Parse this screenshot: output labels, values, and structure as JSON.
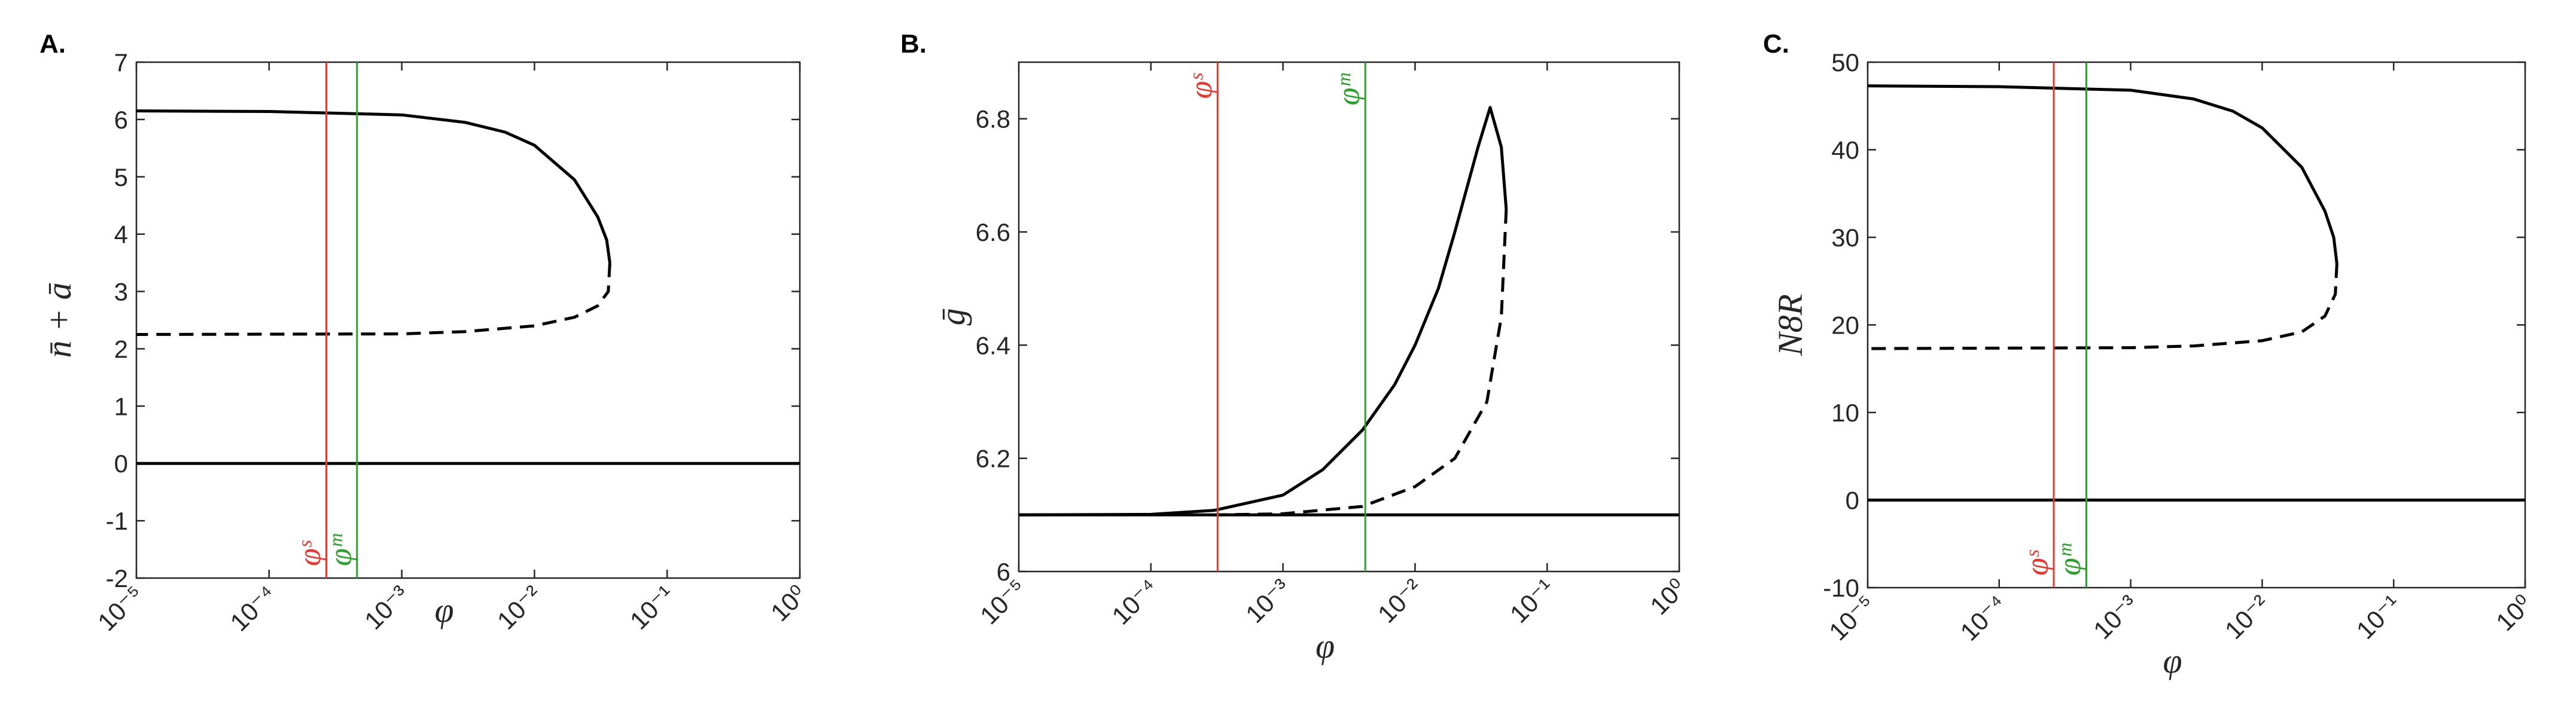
{
  "chart_data": [
    {
      "type": "line",
      "panel_label": "A.",
      "xlabel": "φ",
      "ylabel": "n̄ + ā",
      "xscale": "log",
      "xlim": [
        1e-05,
        1
      ],
      "ylim": [
        -2,
        7
      ],
      "xticks": [
        {
          "value": 1e-05,
          "label": "10⁻⁵"
        },
        {
          "value": 0.0001,
          "label": "10⁻⁴"
        },
        {
          "value": 0.001,
          "label": "10⁻³"
        },
        {
          "value": 0.01,
          "label": "10⁻²"
        },
        {
          "value": 0.1,
          "label": "10⁻¹"
        },
        {
          "value": 1,
          "label": "10⁰"
        }
      ],
      "yticks": [
        -2,
        -1,
        0,
        1,
        2,
        3,
        4,
        5,
        6,
        7
      ],
      "vline_label_position": "bottom",
      "vlines": [
        {
          "x": 0.00027,
          "label": "φˢ",
          "color": "#e8372e"
        },
        {
          "x": 0.00046,
          "label": "φᵐ",
          "color": "#2ca02c"
        }
      ],
      "series": [
        {
          "color": "#000000",
          "style": "solid",
          "x": [
            1e-05,
            0.0001,
            0.001,
            0.003,
            0.006,
            0.01,
            0.02,
            0.03,
            0.035,
            0.037
          ],
          "values": [
            6.15,
            6.14,
            6.08,
            5.95,
            5.78,
            5.55,
            4.95,
            4.3,
            3.9,
            3.5
          ]
        },
        {
          "color": "#000000",
          "style": "dashed",
          "x": [
            0.037,
            0.036,
            0.03,
            0.02,
            0.01,
            0.003,
            0.001,
            1e-05
          ],
          "values": [
            3.5,
            3.0,
            2.75,
            2.55,
            2.4,
            2.3,
            2.26,
            2.25
          ]
        },
        {
          "color": "#000000",
          "style": "solid",
          "x": [
            1e-05,
            1
          ],
          "values": [
            0,
            0
          ]
        }
      ]
    },
    {
      "type": "line",
      "panel_label": "B.",
      "xlabel": "φ",
      "ylabel": "ḡ",
      "xscale": "log",
      "xlim": [
        1e-05,
        1
      ],
      "ylim": [
        6,
        6.9
      ],
      "xticks": [
        {
          "value": 1e-05,
          "label": "10⁻⁵"
        },
        {
          "value": 0.0001,
          "label": "10⁻⁴"
        },
        {
          "value": 0.001,
          "label": "10⁻³"
        },
        {
          "value": 0.01,
          "label": "10⁻²"
        },
        {
          "value": 0.1,
          "label": "10⁻¹"
        },
        {
          "value": 1,
          "label": "10⁰"
        }
      ],
      "yticks": [
        6,
        6.2,
        6.4,
        6.6,
        6.8
      ],
      "vline_label_position": "top",
      "vlines": [
        {
          "x": 0.00032,
          "label": "φˢ",
          "color": "#e8372e"
        },
        {
          "x": 0.0042,
          "label": "φᵐ",
          "color": "#2ca02c"
        }
      ],
      "series": [
        {
          "color": "#000000",
          "style": "solid",
          "x": [
            1e-05,
            0.0001,
            0.0003,
            0.001,
            0.002,
            0.004,
            0.007,
            0.01,
            0.015,
            0.02,
            0.03,
            0.037,
            0.045,
            0.049
          ],
          "values": [
            6.1,
            6.101,
            6.108,
            6.135,
            6.18,
            6.25,
            6.33,
            6.4,
            6.5,
            6.6,
            6.75,
            6.82,
            6.75,
            6.64
          ]
        },
        {
          "color": "#000000",
          "style": "dashed",
          "x": [
            0.049,
            0.045,
            0.035,
            0.02,
            0.01,
            0.004,
            0.001,
            0.0003
          ],
          "values": [
            6.64,
            6.45,
            6.3,
            6.2,
            6.15,
            6.115,
            6.102,
            6.1
          ]
        },
        {
          "color": "#000000",
          "style": "solid",
          "x": [
            1e-05,
            1
          ],
          "values": [
            6.1,
            6.1
          ]
        }
      ]
    },
    {
      "type": "line",
      "panel_label": "C.",
      "xlabel": "φ",
      "ylabel": "N8R",
      "xscale": "log",
      "xlim": [
        1e-05,
        1
      ],
      "ylim": [
        -10,
        50
      ],
      "xticks": [
        {
          "value": 1e-05,
          "label": "10⁻⁵"
        },
        {
          "value": 0.0001,
          "label": "10⁻⁴"
        },
        {
          "value": 0.001,
          "label": "10⁻³"
        },
        {
          "value": 0.01,
          "label": "10⁻²"
        },
        {
          "value": 0.1,
          "label": "10⁻¹"
        },
        {
          "value": 1,
          "label": "10⁰"
        }
      ],
      "yticks": [
        -10,
        0,
        10,
        20,
        30,
        40,
        50
      ],
      "vline_label_position": "bottom",
      "vlines": [
        {
          "x": 0.00026,
          "label": "φˢ",
          "color": "#e8372e"
        },
        {
          "x": 0.00046,
          "label": "φᵐ",
          "color": "#2ca02c"
        }
      ],
      "series": [
        {
          "color": "#000000",
          "style": "solid",
          "x": [
            1e-05,
            0.0001,
            0.001,
            0.003,
            0.006,
            0.01,
            0.02,
            0.03,
            0.035,
            0.037
          ],
          "values": [
            47.3,
            47.2,
            46.8,
            45.8,
            44.4,
            42.5,
            38,
            33,
            30,
            27
          ]
        },
        {
          "color": "#000000",
          "style": "dashed",
          "x": [
            0.037,
            0.036,
            0.03,
            0.02,
            0.01,
            0.003,
            0.001,
            1e-05
          ],
          "values": [
            27,
            23.5,
            21,
            19.2,
            18.2,
            17.6,
            17.4,
            17.3
          ]
        },
        {
          "color": "#000000",
          "style": "solid",
          "x": [
            1e-05,
            1
          ],
          "values": [
            0,
            0
          ]
        }
      ]
    }
  ]
}
